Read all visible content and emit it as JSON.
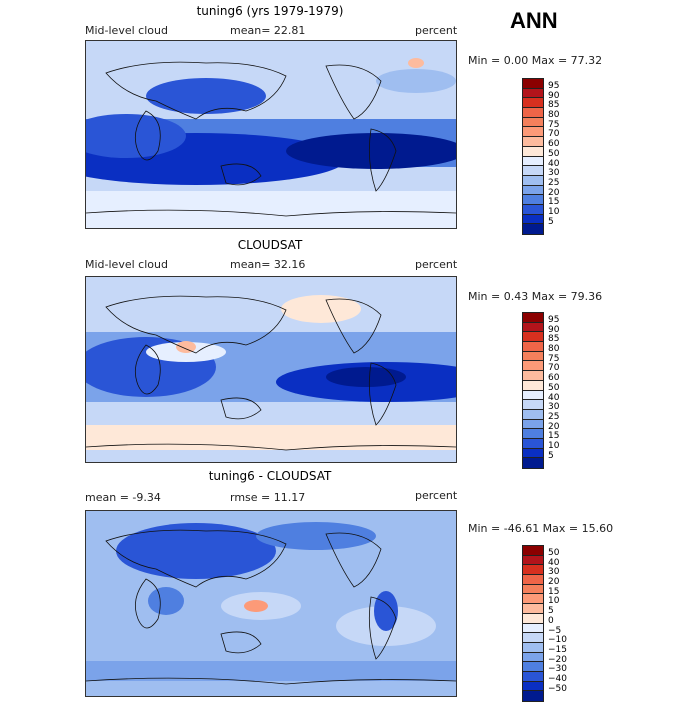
{
  "season": "ANN",
  "panels": [
    {
      "title": "tuning6 (yrs 1979-1979)",
      "left": "Mid-level cloud",
      "stat": "mean=  22.81",
      "units": "percent",
      "range": "Min =   0.00 Max =  77.32",
      "scale": "abs"
    },
    {
      "title": "CLOUDSAT",
      "left": "Mid-level cloud",
      "stat": "mean=  32.16",
      "units": "percent",
      "range": "Min =   0.43 Max =  79.36",
      "scale": "abs"
    },
    {
      "title": "tuning6 - CLOUDSAT",
      "left": "mean =  -9.34",
      "stat": "rmse =  11.17",
      "units": "percent",
      "range": "Min = -46.61 Max =  15.60",
      "scale": "diff"
    }
  ],
  "colorbars": {
    "abs": {
      "labels": [
        "95",
        "90",
        "85",
        "80",
        "75",
        "70",
        "60",
        "50",
        "40",
        "30",
        "25",
        "20",
        "15",
        "10",
        "5"
      ],
      "colors": [
        "#8b0000",
        "#b2141b",
        "#d7301f",
        "#ef6548",
        "#f4805c",
        "#fc9a78",
        "#fdbb9e",
        "#fee8d8",
        "#e6efff",
        "#c6d8f7",
        "#9fbef0",
        "#7ba3ea",
        "#4f7fe0",
        "#2a55d6",
        "#0a2fc2",
        "#001a8f"
      ]
    },
    "diff": {
      "labels": [
        "50",
        "40",
        "30",
        "20",
        "15",
        "10",
        "5",
        "0",
        "−5",
        "−10",
        "−15",
        "−20",
        "−30",
        "−40",
        "−50"
      ],
      "colors": [
        "#8b0000",
        "#b2141b",
        "#d7301f",
        "#ef6548",
        "#f4805c",
        "#fc9a78",
        "#fdbb9e",
        "#fee8d8",
        "#e6efff",
        "#c6d8f7",
        "#9fbef0",
        "#7ba3ea",
        "#4f7fe0",
        "#2a55d6",
        "#0a2fc2",
        "#001a8f"
      ]
    }
  }
}
